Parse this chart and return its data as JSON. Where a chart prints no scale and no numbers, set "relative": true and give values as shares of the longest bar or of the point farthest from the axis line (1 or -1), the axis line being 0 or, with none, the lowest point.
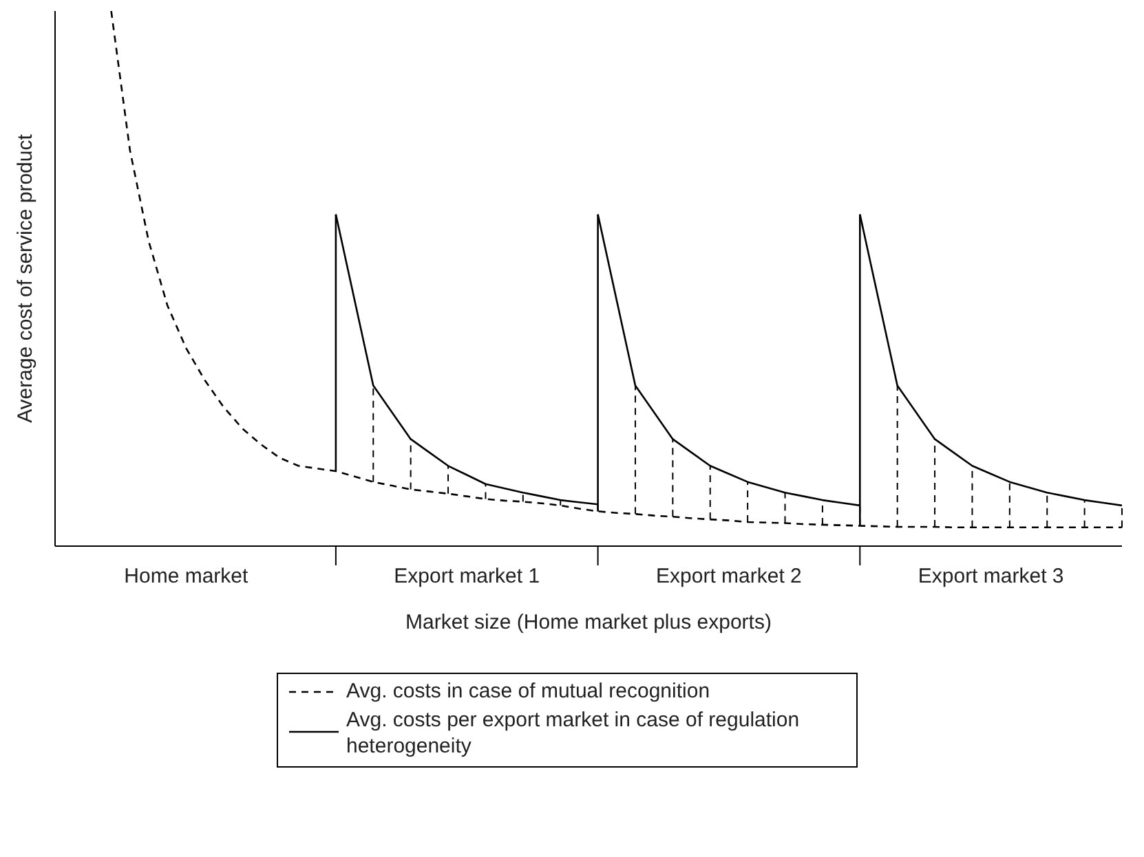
{
  "chart_data": {
    "type": "line",
    "relative": true,
    "xlabel": "Market size (Home market plus exports)",
    "ylabel": "Average cost of service product",
    "legend": "bottom",
    "marker": "none",
    "categories": [
      null,
      null,
      null,
      null,
      null,
      null,
      null,
      "Home market",
      null,
      null,
      null,
      null,
      null,
      null,
      null,
      null,
      null,
      null,
      null,
      null,
      null,
      null,
      "Export market 1",
      null,
      null,
      null,
      null,
      null,
      null,
      null,
      null,
      null,
      null,
      null,
      null,
      null,
      "Export market 2",
      null,
      null,
      null,
      null,
      null,
      null,
      null,
      null,
      null,
      null,
      null,
      null,
      null,
      "Export market 3",
      null,
      null,
      null,
      null,
      null,
      null,
      null
    ],
    "series": [
      {
        "name": "Avg. costs in case of mutual recognition",
        "color": "#000000",
        "line_style": "dashed",
        "values": [
          null,
          null,
          null,
          1.0,
          0.74,
          0.57,
          0.45,
          0.37,
          0.31,
          0.26,
          0.22,
          0.19,
          0.165,
          0.15,
          0.145,
          0.14,
          0.13,
          0.12,
          0.113,
          0.106,
          0.102,
          0.098,
          0.093,
          0.088,
          0.085,
          0.083,
          0.08,
          0.076,
          0.07,
          0.065,
          0.062,
          0.06,
          0.057,
          0.055,
          0.052,
          0.05,
          0.048,
          0.045,
          0.044,
          0.043,
          0.041,
          0.04,
          0.039,
          0.038,
          0.037,
          0.036,
          0.036,
          0.036,
          0.035,
          0.035,
          0.035,
          0.035,
          0.035,
          0.035,
          0.035,
          0.035,
          0.035,
          0.035
        ]
      },
      {
        "name": "Avg. costs per export market in case of regulation heterogeneity",
        "color": "#000000",
        "line_style": "solid",
        "values": [
          null,
          null,
          null,
          null,
          null,
          null,
          null,
          null,
          null,
          null,
          null,
          null,
          null,
          null,
          null,
          0.62,
          0.46,
          0.3,
          0.25,
          0.2,
          0.175,
          0.15,
          0.133,
          0.116,
          0.108,
          0.1,
          0.093,
          0.086,
          0.082,
          0.078,
          null,
          null,
          null,
          null,
          null,
          null,
          null,
          null,
          null,
          null,
          null,
          null,
          null,
          null,
          null,
          null,
          null,
          null,
          null,
          null,
          null,
          null,
          null,
          null,
          null,
          null,
          null,
          null
        ]
      },
      {
        "color": "#000000",
        "line_style": "solid",
        "values": [
          null,
          null,
          null,
          null,
          null,
          null,
          null,
          null,
          null,
          null,
          null,
          null,
          null,
          null,
          null,
          null,
          null,
          null,
          null,
          null,
          null,
          null,
          null,
          null,
          null,
          null,
          null,
          null,
          null,
          0.62,
          0.46,
          0.3,
          0.25,
          0.2,
          0.175,
          0.15,
          0.135,
          0.12,
          0.11,
          0.1,
          0.093,
          0.086,
          0.081,
          0.076,
          null,
          null,
          null,
          null,
          null,
          null,
          null,
          null,
          null,
          null,
          null,
          null,
          null,
          null
        ]
      },
      {
        "color": "#000000",
        "line_style": "solid",
        "values": [
          null,
          null,
          null,
          null,
          null,
          null,
          null,
          null,
          null,
          null,
          null,
          null,
          null,
          null,
          null,
          null,
          null,
          null,
          null,
          null,
          null,
          null,
          null,
          null,
          null,
          null,
          null,
          null,
          null,
          null,
          null,
          null,
          null,
          null,
          null,
          null,
          null,
          null,
          null,
          null,
          null,
          null,
          null,
          0.62,
          0.46,
          0.3,
          0.25,
          0.2,
          0.175,
          0.15,
          0.135,
          0.12,
          0.11,
          0.1,
          0.093,
          0.086,
          0.081,
          0.076
        ]
      }
    ]
  }
}
